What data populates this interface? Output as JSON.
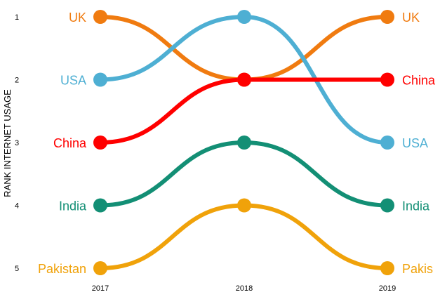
{
  "chart_data": {
    "type": "line",
    "subtype": "bump",
    "title": "",
    "xlabel": "",
    "ylabel": "RANK INTERNET USAGE",
    "x": [
      "2017",
      "2018",
      "2019"
    ],
    "y_ticks": [
      "1",
      "2",
      "3",
      "4",
      "5"
    ],
    "ylim": [
      1,
      5
    ],
    "y_inverted": true,
    "grid": false,
    "legend": "direct-labels-both-ends",
    "series": [
      {
        "name": "UK",
        "color": "#F07B10",
        "values": [
          1,
          2,
          1
        ],
        "label_left": "UK",
        "label_right": "UK"
      },
      {
        "name": "USA",
        "color": "#4EAFD3",
        "values": [
          2,
          1,
          3
        ],
        "label_left": "USA",
        "label_right": "USA"
      },
      {
        "name": "China",
        "color": "#FF0000",
        "values": [
          3,
          2,
          2
        ],
        "label_left": "China",
        "label_right": "China"
      },
      {
        "name": "India",
        "color": "#138F75",
        "values": [
          4,
          3,
          4
        ],
        "label_left": "India",
        "label_right": "India"
      },
      {
        "name": "Pakistan",
        "color": "#F0A20A",
        "values": [
          5,
          4,
          5
        ],
        "label_left": "Pakistan",
        "label_right": "Pakis"
      }
    ]
  }
}
